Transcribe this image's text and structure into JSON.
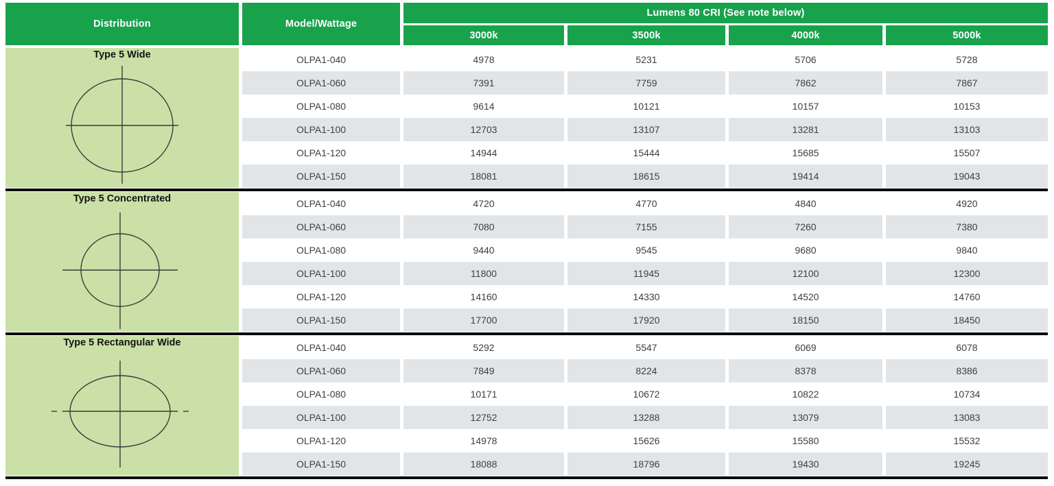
{
  "table": {
    "header": {
      "distribution": "Distribution",
      "model_wattage": "Model/Wattage",
      "lumens_group": "Lumens 80 CRI (See note below)",
      "cct_columns": [
        "3000k",
        "3500k",
        "4000k",
        "5000k"
      ]
    },
    "colors": {
      "header_green": "#18a24c",
      "light_green": "#cbe0a6",
      "stripe_gray": "#e2e5e8",
      "divider_black": "#0b0b0b"
    },
    "sections": [
      {
        "distribution_label": "Type 5 Wide",
        "diagram": "type5-wide-circle-crosshair",
        "rows": [
          {
            "model": "OLPA1-040",
            "values": [
              4978,
              5231,
              5706,
              5728
            ]
          },
          {
            "model": "OLPA1-060",
            "values": [
              7391,
              7759,
              7862,
              7867
            ]
          },
          {
            "model": "OLPA1-080",
            "values": [
              9614,
              10121,
              10157,
              10153
            ]
          },
          {
            "model": "OLPA1-100",
            "values": [
              12703,
              13107,
              13281,
              13103
            ]
          },
          {
            "model": "OLPA1-120",
            "values": [
              14944,
              15444,
              15685,
              15507
            ]
          },
          {
            "model": "OLPA1-150",
            "values": [
              18081,
              18615,
              19414,
              19043
            ]
          }
        ]
      },
      {
        "distribution_label": "Type 5 Concentrated",
        "diagram": "type5-concentrated-circle-crosshair",
        "rows": [
          {
            "model": "OLPA1-040",
            "values": [
              4720,
              4770,
              4840,
              4920
            ]
          },
          {
            "model": "OLPA1-060",
            "values": [
              7080,
              7155,
              7260,
              7380
            ]
          },
          {
            "model": "OLPA1-080",
            "values": [
              9440,
              9545,
              9680,
              9840
            ]
          },
          {
            "model": "OLPA1-100",
            "values": [
              11800,
              11945,
              12100,
              12300
            ]
          },
          {
            "model": "OLPA1-120",
            "values": [
              14160,
              14330,
              14520,
              14760
            ]
          },
          {
            "model": "OLPA1-150",
            "values": [
              17700,
              17920,
              18150,
              18450
            ]
          }
        ]
      },
      {
        "distribution_label": "Type 5 Rectangular Wide",
        "diagram": "type5-rectangular-ellipse-crosshair",
        "rows": [
          {
            "model": "OLPA1-040",
            "values": [
              5292,
              5547,
              6069,
              6078
            ]
          },
          {
            "model": "OLPA1-060",
            "values": [
              7849,
              8224,
              8378,
              8386
            ]
          },
          {
            "model": "OLPA1-080",
            "values": [
              10171,
              10672,
              10822,
              10734
            ]
          },
          {
            "model": "OLPA1-100",
            "values": [
              12752,
              13288,
              13079,
              13083
            ]
          },
          {
            "model": "OLPA1-120",
            "values": [
              14978,
              15626,
              15580,
              15532
            ]
          },
          {
            "model": "OLPA1-150",
            "values": [
              18088,
              18796,
              19430,
              19245
            ]
          }
        ]
      }
    ]
  }
}
